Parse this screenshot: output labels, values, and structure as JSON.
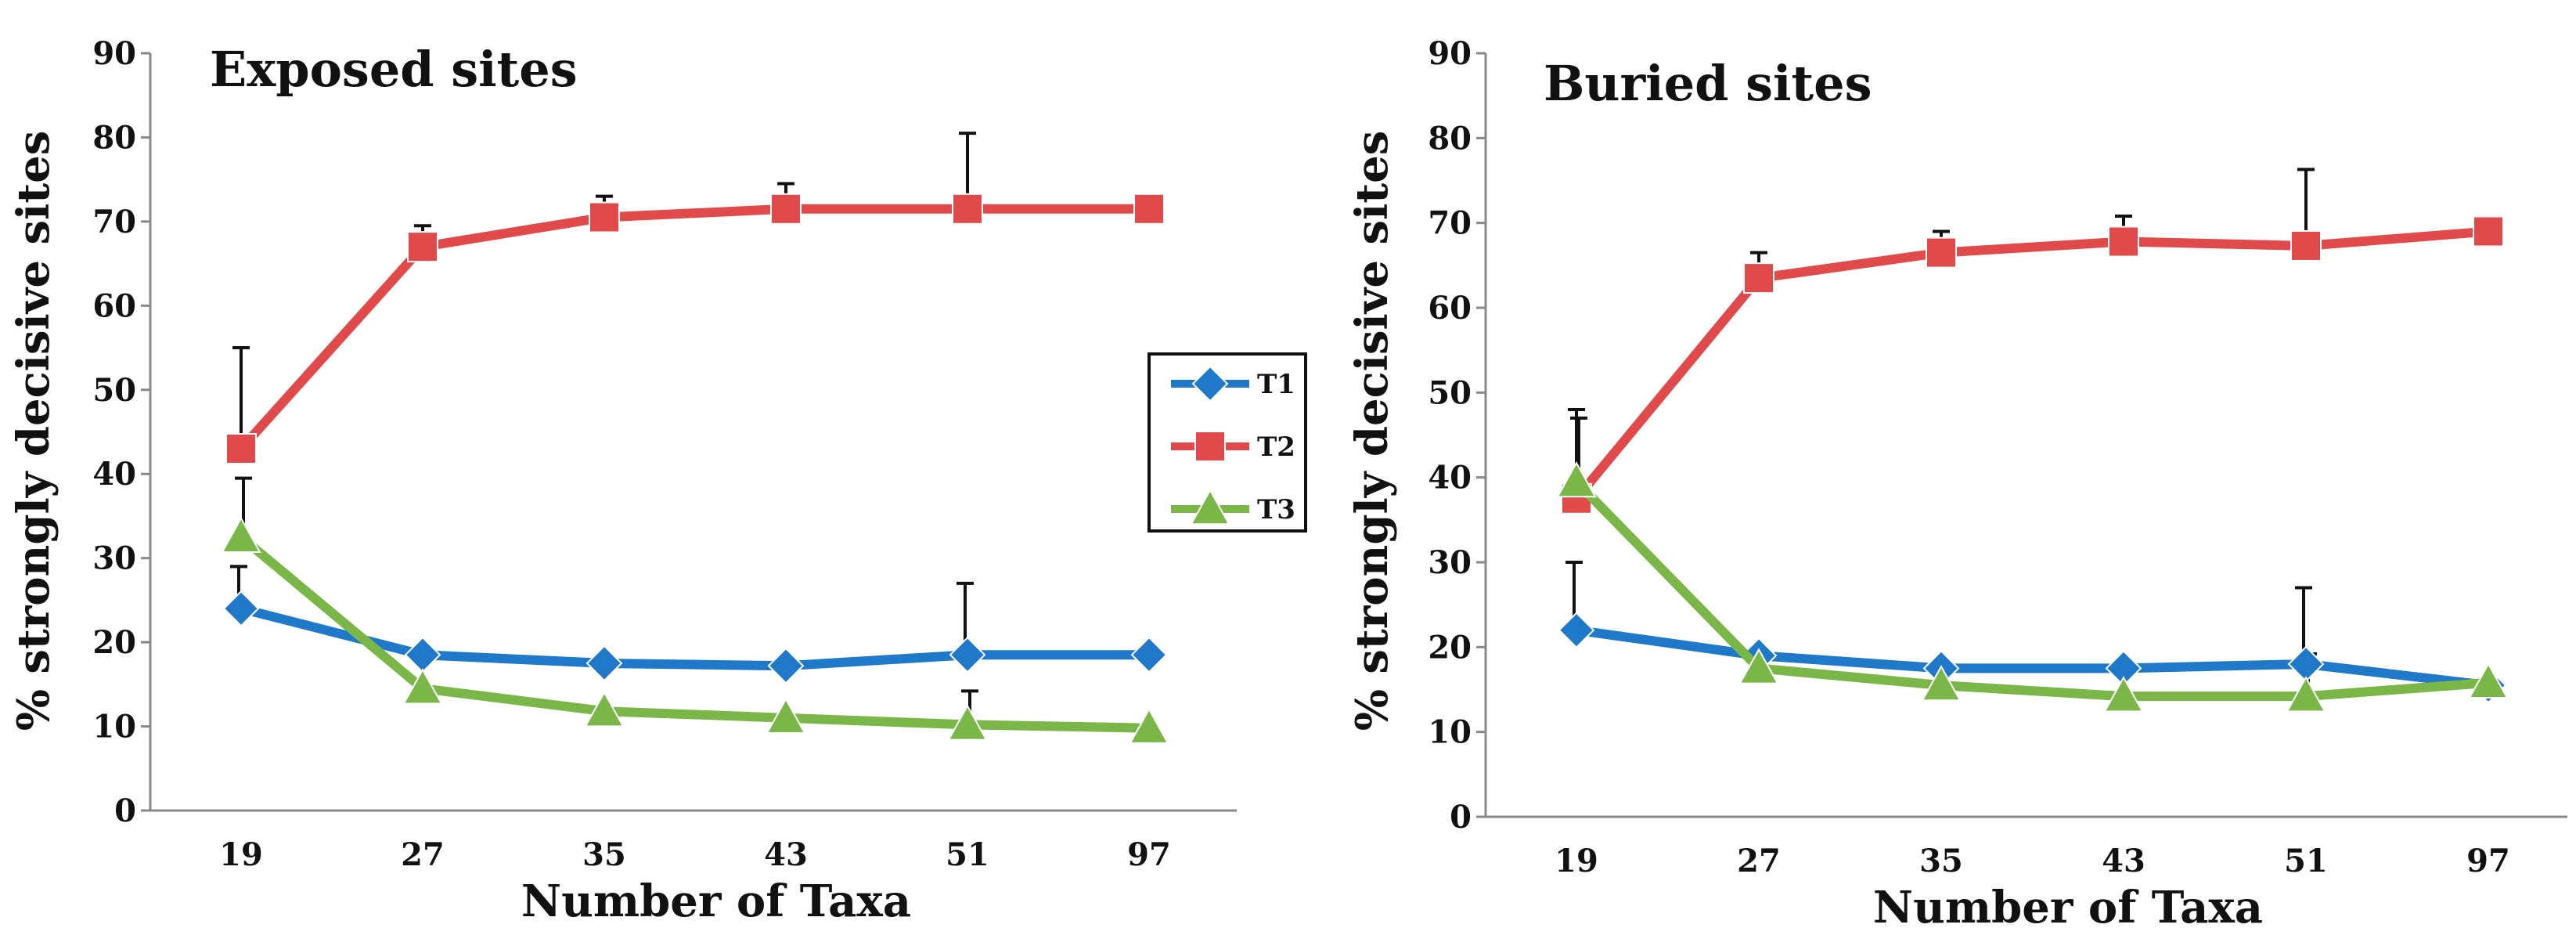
{
  "chart_data": [
    {
      "type": "line",
      "title": "Exposed sites",
      "xlabel": "Number of Taxa",
      "ylabel": "% strongly decisive sites",
      "categories": [
        "19",
        "27",
        "35",
        "43",
        "51",
        "97"
      ],
      "yticks": [
        "0",
        "10",
        "20",
        "30",
        "40",
        "50",
        "60",
        "70",
        "80",
        "90"
      ],
      "ylim": [
        0,
        90
      ],
      "grid": false,
      "legend": "right",
      "series": [
        {
          "name": "T1",
          "color": "#1f78c8",
          "marker": "diamond",
          "values": [
            24,
            18.5,
            17.5,
            17.2,
            18.5,
            18.5
          ],
          "error": [
            5,
            null,
            null,
            null,
            8.5,
            null
          ]
        },
        {
          "name": "T2",
          "color": "#e04a4a",
          "marker": "square",
          "values": [
            43,
            67,
            70.5,
            71.5,
            71.5,
            71.5
          ],
          "error": [
            12,
            2.5,
            2.5,
            3,
            9,
            null
          ]
        },
        {
          "name": "T3",
          "color": "#7ab648",
          "marker": "triangle",
          "values": [
            32.5,
            14.5,
            11.8,
            11,
            10.2,
            9.8
          ],
          "error": [
            7,
            null,
            null,
            null,
            4,
            null
          ]
        }
      ]
    },
    {
      "type": "line",
      "title": "Buried sites",
      "xlabel": "Number of Taxa",
      "ylabel": "% strongly decisive sites",
      "categories": [
        "19",
        "27",
        "35",
        "43",
        "51",
        "97"
      ],
      "yticks": [
        "0",
        "10",
        "20",
        "30",
        "40",
        "50",
        "60",
        "70",
        "80",
        "90"
      ],
      "ylim": [
        0,
        90
      ],
      "grid": false,
      "legend": "none",
      "series": [
        {
          "name": "T1",
          "color": "#1f78c8",
          "marker": "diamond",
          "values": [
            22,
            19,
            17.5,
            17.5,
            18,
            15.5
          ],
          "error": [
            8,
            null,
            null,
            null,
            9,
            null
          ]
        },
        {
          "name": "T2",
          "color": "#e04a4a",
          "marker": "square",
          "values": [
            37.5,
            63.5,
            66.5,
            67.8,
            67.3,
            69
          ],
          "error": [
            10.5,
            3,
            2.5,
            3,
            9,
            null
          ]
        },
        {
          "name": "T3",
          "color": "#7ab648",
          "marker": "triangle",
          "values": [
            39.5,
            17.5,
            15.5,
            14.2,
            14.2,
            15.8
          ],
          "error": [
            7.5,
            null,
            null,
            null,
            5,
            null
          ]
        }
      ]
    }
  ]
}
